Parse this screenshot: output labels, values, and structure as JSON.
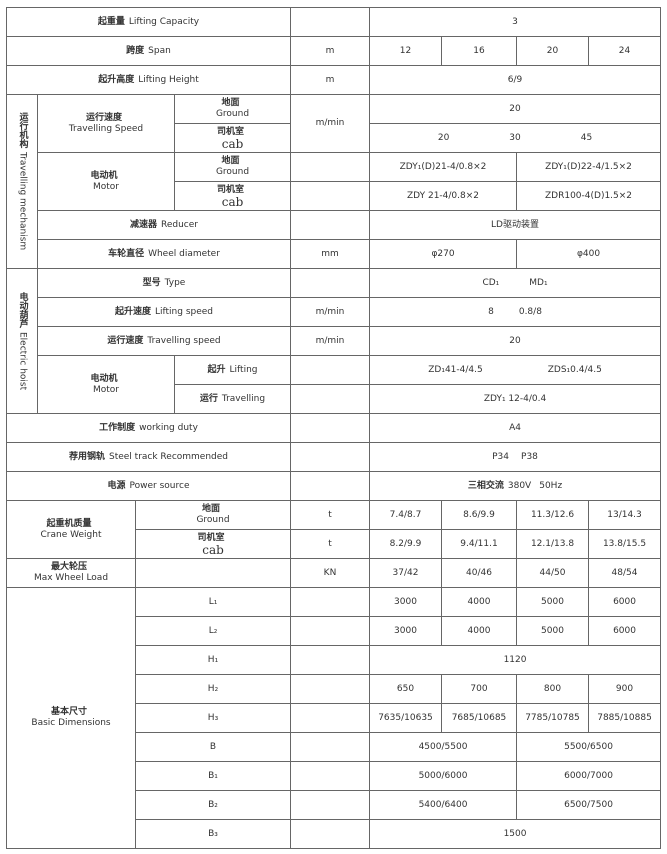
{
  "rows": {
    "lifting_capacity": {
      "zh": "起重量",
      "en": "Lifting Capacity",
      "unit": "",
      "value": "3"
    },
    "span": {
      "zh": "跨度",
      "en": "Span",
      "unit": "m",
      "values": [
        "12",
        "16",
        "20",
        "24"
      ]
    },
    "lifting_height": {
      "zh": "起升高度",
      "en": "Lifting Height",
      "unit": "m",
      "value": "6/9"
    },
    "travelling_mechanism": {
      "zh": "运行机构",
      "en": "Travelling mechanism",
      "speed": {
        "zh": "运行速度",
        "en": "Travelling Speed",
        "unit": "m/min",
        "ground": {
          "zh": "地面",
          "en": "Ground",
          "value": "20"
        },
        "cab": {
          "zh": "司机室",
          "en": "cab",
          "values": [
            "20",
            "30",
            "45"
          ]
        }
      },
      "motor": {
        "zh": "电动机",
        "en": "Motor",
        "ground": {
          "zh": "地面",
          "en": "Ground",
          "values": [
            "ZDY₁(D)21-4/0.8×2",
            "ZDY₁(D)22-4/1.5×2"
          ]
        },
        "cab": {
          "zh": "司机室",
          "en": "cab",
          "values": [
            "ZDY 21-4/0.8×2",
            "ZDR100-4(D)1.5×2"
          ]
        }
      },
      "reducer": {
        "zh": "减速器",
        "en": "Reducer",
        "value": "LD驱动装置"
      },
      "wheel": {
        "zh": "车轮直径",
        "en": "Wheel diameter",
        "unit": "mm",
        "values": [
          "φ270",
          "φ400"
        ]
      }
    },
    "electric_hoist": {
      "zh": "电动葫芦",
      "en": "Electric hoist",
      "type": {
        "zh": "型号",
        "en": "Type",
        "values": [
          "CD₁",
          "MD₁"
        ]
      },
      "lifting_speed": {
        "zh": "起升速度",
        "en": "Lifting speed",
        "unit": "m/min",
        "values": [
          "8",
          "0.8/8"
        ]
      },
      "travelling_speed": {
        "zh": "运行速度",
        "en": "Travelling speed",
        "unit": "m/min",
        "value": "20"
      },
      "motor": {
        "zh": "电动机",
        "en": "Motor",
        "lifting": {
          "zh": "起升",
          "en": "Lifting",
          "values": [
            "ZD₁41-4/4.5",
            "ZDS₁0.4/4.5"
          ]
        },
        "travelling": {
          "zh": "运行",
          "en": "Travelling",
          "value": "ZDY₁ 12-4/0.4"
        }
      }
    },
    "working_duty": {
      "zh": "工作制度",
      "en": "working duty",
      "value": "A4"
    },
    "steel_track": {
      "zh": "荐用钢轨",
      "en": "Steel track Recommended",
      "values": [
        "P34",
        "P38"
      ]
    },
    "power": {
      "zh": "电源",
      "en": "Power source",
      "value_zh": "三相交流",
      "values": [
        "380V",
        "50Hz"
      ]
    },
    "crane_weight": {
      "zh": "起重机质量",
      "en": "Crane Weight",
      "ground": {
        "zh": "地面",
        "en": "Ground",
        "unit": "t",
        "values": [
          "7.4/8.7",
          "8.6/9.9",
          "11.3/12.6",
          "13/14.3"
        ]
      },
      "cab": {
        "zh": "司机室",
        "en": "cab",
        "unit": "t",
        "values": [
          "8.2/9.9",
          "9.4/11.1",
          "12.1/13.8",
          "13.8/15.5"
        ]
      }
    },
    "max_wheel_load": {
      "zh": "最大轮压",
      "en": "Max Wheel Load",
      "unit": "KN",
      "values": [
        "37/42",
        "40/46",
        "44/50",
        "48/54"
      ]
    },
    "basic_dimensions": {
      "zh": "基本尺寸",
      "en": "Basic Dimensions",
      "L1": {
        "label": "L₁",
        "values": [
          "3000",
          "4000",
          "5000",
          "6000"
        ]
      },
      "L2": {
        "label": "L₂",
        "values": [
          "3000",
          "4000",
          "5000",
          "6000"
        ]
      },
      "H1": {
        "label": "H₁",
        "value": "1120"
      },
      "H2": {
        "label": "H₂",
        "values": [
          "650",
          "700",
          "800",
          "900"
        ]
      },
      "H3": {
        "label": "H₃",
        "values": [
          "7635/10635",
          "7685/10685",
          "7785/10785",
          "7885/10885"
        ]
      },
      "B": {
        "label": "B",
        "values": [
          "4500/5500",
          "5500/6500"
        ]
      },
      "B1": {
        "label": "B₁",
        "values": [
          "5000/6000",
          "6000/7000"
        ]
      },
      "B2": {
        "label": "B₂",
        "values": [
          "5400/6400",
          "6500/7500"
        ]
      },
      "B3": {
        "label": "B₃",
        "value": "1500"
      }
    }
  }
}
